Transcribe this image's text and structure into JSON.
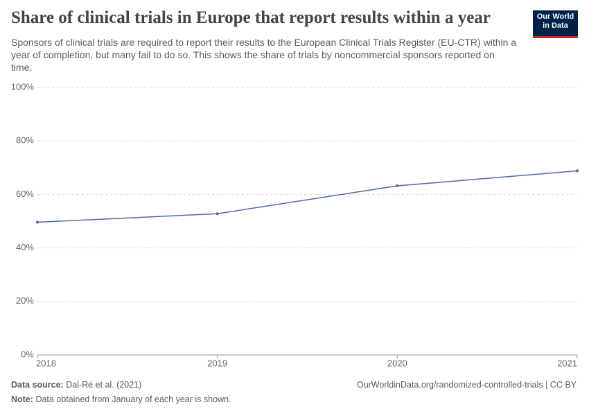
{
  "chart_data": {
    "type": "line",
    "title": "Share of clinical trials in Europe that report results within a year",
    "subtitle": "Sponsors of clinical trials are required to report their results to the European Clinical Trials Register (EU-CTR) within a year of completion, but many fail to do so. This shows the share of trials by noncommercial sponsors reported on time.",
    "logo": [
      "Our World",
      "in Data"
    ],
    "x": [
      2018,
      2019,
      2020,
      2021
    ],
    "values": [
      49.6,
      52.8,
      63.2,
      68.8
    ],
    "color": "#4c6a9c",
    "xlim": [
      2018,
      2021
    ],
    "xticks": [
      2018,
      2019,
      2020,
      2021
    ],
    "ylim": [
      0,
      100
    ],
    "yticks": [
      {
        "value": 0,
        "label": "0%"
      },
      {
        "value": 20,
        "label": "20%"
      },
      {
        "value": 40,
        "label": "40%"
      },
      {
        "value": 60,
        "label": "60%"
      },
      {
        "value": 80,
        "label": "80%"
      },
      {
        "value": 100,
        "label": "100%"
      }
    ],
    "grid": true,
    "source_label": "Data source:",
    "source": "Dal-Ré et al. (2021)",
    "url": "OurWorldinData.org/randomized-controlled-trials | CC BY",
    "note_label": "Note:",
    "note": "Data obtained from January of each year is shown."
  }
}
